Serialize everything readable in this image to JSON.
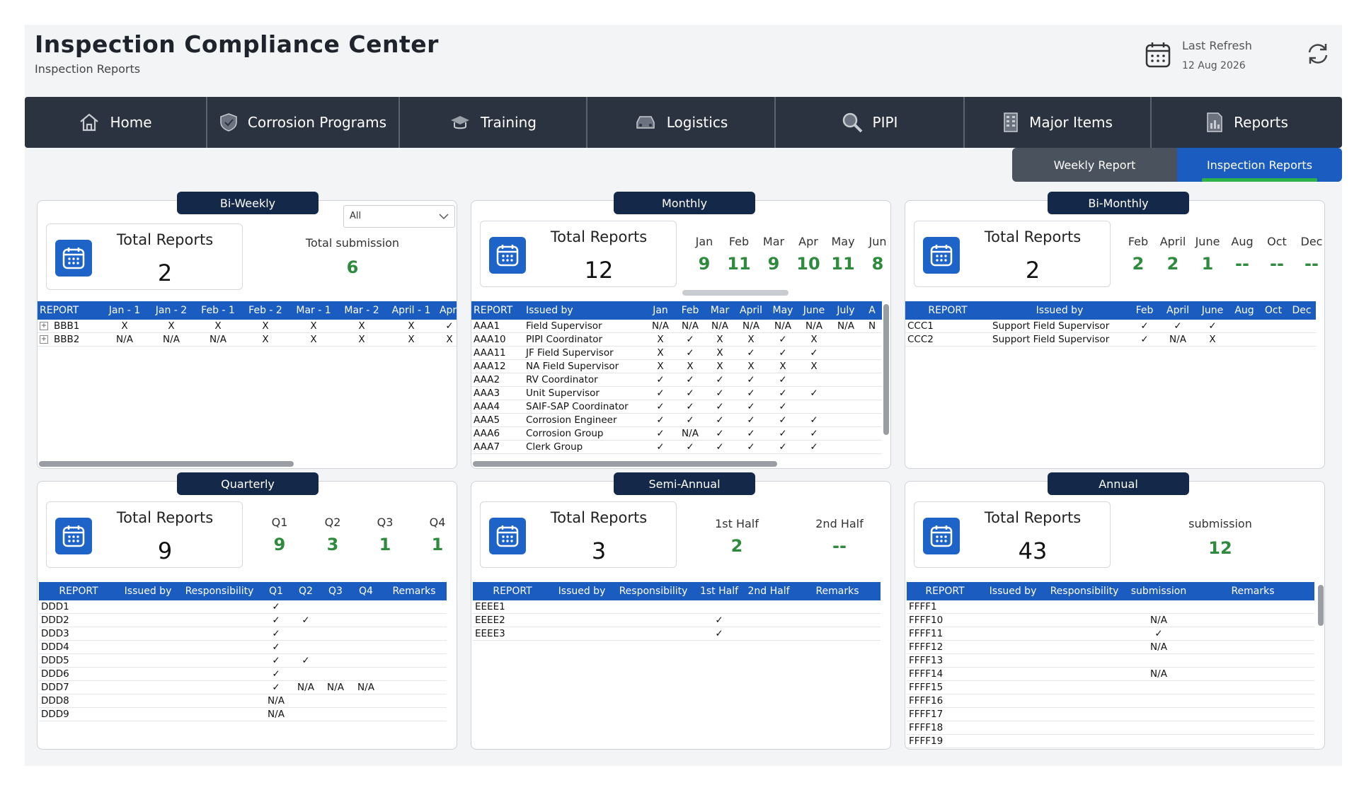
{
  "header": {
    "title": "Inspection Compliance Center",
    "subtitle": "Inspection Reports",
    "refresh_label": "Last Refresh",
    "refresh_date": "12 Aug 2026"
  },
  "nav": [
    {
      "label": "Home",
      "icon": "home-icon"
    },
    {
      "label": "Corrosion Programs",
      "icon": "shield-icon"
    },
    {
      "label": "Training",
      "icon": "graduation-cap-icon"
    },
    {
      "label": "Logistics",
      "icon": "car-icon"
    },
    {
      "label": "PIPI",
      "icon": "search-icon"
    },
    {
      "label": "Major Items",
      "icon": "building-icon"
    },
    {
      "label": "Reports",
      "icon": "report-icon"
    }
  ],
  "subtabs": {
    "weekly": "Weekly Report",
    "inspection": "Inspection Reports"
  },
  "biweekly": {
    "title": "Bi-Weekly",
    "filter": "All",
    "kpi_label": "Total Reports",
    "kpi_value": "2",
    "submission_label": "Total submission",
    "submission_value": "6",
    "columns": [
      "REPORT",
      "Jan - 1",
      "Jan - 2",
      "Feb - 1",
      "Feb - 2",
      "Mar - 1",
      "Mar - 2",
      "April - 1",
      "Apri"
    ],
    "rows": [
      [
        "BBB1",
        "X",
        "X",
        "X",
        "X",
        "X",
        "X",
        "X",
        "✓"
      ],
      [
        "BBB2",
        "N/A",
        "N/A",
        "N/A",
        "X",
        "X",
        "X",
        "X",
        "X"
      ]
    ]
  },
  "monthly": {
    "title": "Monthly",
    "kpi_label": "Total Reports",
    "kpi_value": "12",
    "months": [
      {
        "label": "Jan",
        "value": "9"
      },
      {
        "label": "Feb",
        "value": "11"
      },
      {
        "label": "Mar",
        "value": "9"
      },
      {
        "label": "Apr",
        "value": "10"
      },
      {
        "label": "May",
        "value": "11"
      },
      {
        "label": "Jun",
        "value": "8"
      }
    ],
    "columns": [
      "REPORT",
      "Issued by",
      "Jan",
      "Feb",
      "Mar",
      "April",
      "May",
      "June",
      "July",
      "A"
    ],
    "rows": [
      [
        "AAA1",
        "Field Supervisor",
        "N/A",
        "N/A",
        "N/A",
        "N/A",
        "N/A",
        "N/A",
        "N/A",
        "N"
      ],
      [
        "AAA10",
        "PIPI Coordinator",
        "X",
        "✓",
        "X",
        "X",
        "✓",
        "X",
        "",
        ""
      ],
      [
        "AAA11",
        "JF Field Supervisor",
        "X",
        "✓",
        "X",
        "✓",
        "✓",
        "✓",
        "",
        ""
      ],
      [
        "AAA12",
        "NA Field Supervisor",
        "X",
        "X",
        "X",
        "X",
        "X",
        "X",
        "",
        ""
      ],
      [
        "AAA2",
        "RV Coordinator",
        "✓",
        "✓",
        "✓",
        "✓",
        "✓",
        "",
        "",
        ""
      ],
      [
        "AAA3",
        "Unit Supervisor",
        "✓",
        "✓",
        "✓",
        "✓",
        "✓",
        "✓",
        "",
        ""
      ],
      [
        "AAA4",
        "SAIF-SAP Coordinator",
        "✓",
        "✓",
        "✓",
        "✓",
        "✓",
        "",
        "",
        ""
      ],
      [
        "AAA5",
        "Corrosion Engineer",
        "✓",
        "✓",
        "✓",
        "✓",
        "✓",
        "✓",
        "",
        ""
      ],
      [
        "AAA6",
        "Corrosion Group",
        "✓",
        "N/A",
        "✓",
        "✓",
        "✓",
        "✓",
        "",
        ""
      ],
      [
        "AAA7",
        "Clerk Group",
        "✓",
        "✓",
        "✓",
        "✓",
        "✓",
        "✓",
        "",
        ""
      ]
    ]
  },
  "bimonthly": {
    "title": "Bi-Monthly",
    "kpi_label": "Total Reports",
    "kpi_value": "2",
    "months": [
      {
        "label": "Feb",
        "value": "2"
      },
      {
        "label": "April",
        "value": "2"
      },
      {
        "label": "June",
        "value": "1"
      },
      {
        "label": "Aug",
        "value": "--"
      },
      {
        "label": "Oct",
        "value": "--"
      },
      {
        "label": "Dec",
        "value": "--"
      }
    ],
    "columns": [
      "REPORT",
      "Issued by",
      "Feb",
      "April",
      "June",
      "Aug",
      "Oct",
      "Dec"
    ],
    "rows": [
      [
        "CCC1",
        "Support Field Supervisor",
        "✓",
        "✓",
        "✓",
        "",
        "",
        ""
      ],
      [
        "CCC2",
        "Support Field Supervisor",
        "✓",
        "N/A",
        "X",
        "",
        "",
        ""
      ]
    ]
  },
  "quarterly": {
    "title": "Quarterly",
    "kpi_label": "Total Reports",
    "kpi_value": "9",
    "quarters": [
      {
        "label": "Q1",
        "value": "9"
      },
      {
        "label": "Q2",
        "value": "3"
      },
      {
        "label": "Q3",
        "value": "1"
      },
      {
        "label": "Q4",
        "value": "1"
      }
    ],
    "columns": [
      "REPORT",
      "Issued by",
      "Responsibility",
      "Q1",
      "Q2",
      "Q3",
      "Q4",
      "Remarks"
    ],
    "rows": [
      [
        "DDD1",
        "",
        "",
        "✓",
        "",
        "",
        "",
        ""
      ],
      [
        "DDD2",
        "",
        "",
        "✓",
        "✓",
        "",
        "",
        ""
      ],
      [
        "DDD3",
        "",
        "",
        "✓",
        "",
        "",
        "",
        ""
      ],
      [
        "DDD4",
        "",
        "",
        "✓",
        "",
        "",
        "",
        ""
      ],
      [
        "DDD5",
        "",
        "",
        "✓",
        "✓",
        "",
        "",
        ""
      ],
      [
        "DDD6",
        "",
        "",
        "✓",
        "",
        "",
        "",
        ""
      ],
      [
        "DDD7",
        "",
        "",
        "✓",
        "N/A",
        "N/A",
        "N/A",
        ""
      ],
      [
        "DDD8",
        "",
        "",
        "N/A",
        "",
        "",
        "",
        ""
      ],
      [
        "DDD9",
        "",
        "",
        "N/A",
        "",
        "",
        "",
        ""
      ]
    ]
  },
  "semiannual": {
    "title": "Semi-Annual",
    "kpi_label": "Total Reports",
    "kpi_value": "3",
    "halves": [
      {
        "label": "1st Half",
        "value": "2"
      },
      {
        "label": "2nd Half",
        "value": "--"
      }
    ],
    "columns": [
      "REPORT",
      "Issued by",
      "Responsibility",
      "1st Half",
      "2nd Half",
      "Remarks"
    ],
    "rows": [
      [
        "EEEE1",
        "",
        "",
        "",
        "",
        ""
      ],
      [
        "EEEE2",
        "",
        "",
        "✓",
        "",
        ""
      ],
      [
        "EEEE3",
        "",
        "",
        "✓",
        "",
        ""
      ]
    ]
  },
  "annual": {
    "title": "Annual",
    "kpi_label": "Total Reports",
    "kpi_value": "43",
    "submission_label": "submission",
    "submission_value": "12",
    "columns": [
      "REPORT",
      "Issued by",
      "Responsibility",
      "submission",
      "Remarks"
    ],
    "rows": [
      [
        "FFFF1",
        "",
        "",
        "",
        ""
      ],
      [
        "FFFF10",
        "",
        "",
        "N/A",
        ""
      ],
      [
        "FFFF11",
        "",
        "",
        "✓",
        ""
      ],
      [
        "FFFF12",
        "",
        "",
        "N/A",
        ""
      ],
      [
        "FFFF13",
        "",
        "",
        "",
        ""
      ],
      [
        "FFFF14",
        "",
        "",
        "N/A",
        ""
      ],
      [
        "FFFF15",
        "",
        "",
        "",
        ""
      ],
      [
        "FFFF16",
        "",
        "",
        "",
        ""
      ],
      [
        "FFFF17",
        "",
        "",
        "",
        ""
      ],
      [
        "FFFF18",
        "",
        "",
        "",
        ""
      ],
      [
        "FFFF19",
        "",
        "",
        "",
        ""
      ]
    ]
  },
  "colors": {
    "nav_bg": "#2b3340",
    "accent_blue": "#1a5cc0",
    "title_bg": "#14294a",
    "green": "#2e8b3e"
  }
}
